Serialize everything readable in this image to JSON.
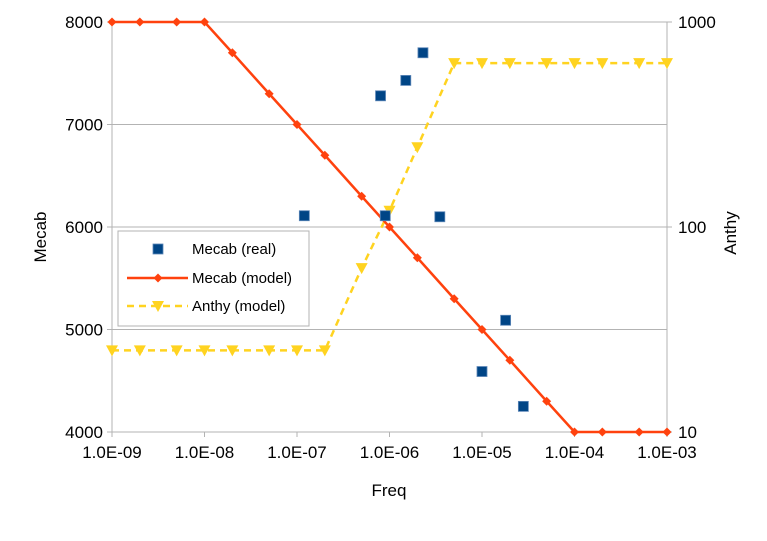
{
  "chart_data": {
    "type": "scatter",
    "xlabel": "Freq",
    "ylabel_left": "Mecab",
    "ylabel_right": "Anthy",
    "x_scale": "log",
    "xlim": [
      1e-09,
      0.001
    ],
    "x_ticks": [
      1e-09,
      1e-08,
      1e-07,
      1e-06,
      1e-05,
      0.0001,
      0.001
    ],
    "x_tick_labels": [
      "1.0E-09",
      "1.0E-08",
      "1.0E-07",
      "1.0E-06",
      "1.0E-05",
      "1.0E-04",
      "1.0E-03"
    ],
    "y_left_lim": [
      4000,
      8000
    ],
    "y_left_ticks": [
      4000,
      5000,
      6000,
      7000,
      8000
    ],
    "y_left_tick_labels": [
      "4000",
      "5000",
      "6000",
      "7000",
      "8000"
    ],
    "y_right_scale": "log",
    "y_right_lim": [
      10,
      1000
    ],
    "y_right_ticks": [
      10,
      100,
      1000
    ],
    "y_right_tick_labels": [
      "10",
      "100",
      "1000"
    ],
    "grid": "horizontal",
    "legend_position": "middle-left",
    "series": [
      {
        "name": "Mecab (real)",
        "axis": "left",
        "style": "markers",
        "marker": "square",
        "color": "#004586",
        "points": [
          [
            1.2e-07,
            6110
          ],
          [
            8e-07,
            7280
          ],
          [
            9e-07,
            6110
          ],
          [
            1.5e-06,
            7430
          ],
          [
            2.3e-06,
            7700
          ],
          [
            3.5e-06,
            6100
          ],
          [
            1e-05,
            4590
          ],
          [
            1.8e-05,
            5090
          ],
          [
            2.8e-05,
            4250
          ]
        ]
      },
      {
        "name": "Mecab (model)",
        "axis": "left",
        "style": "line",
        "marker": "diamond",
        "color": "#ff420e",
        "points": [
          [
            1e-09,
            8000
          ],
          [
            2e-09,
            8000
          ],
          [
            5e-09,
            8000
          ],
          [
            1e-08,
            8000
          ],
          [
            2e-08,
            7700
          ],
          [
            5e-08,
            7300
          ],
          [
            1e-07,
            7000
          ],
          [
            2e-07,
            6700
          ],
          [
            5e-07,
            6300
          ],
          [
            1e-06,
            6000
          ],
          [
            2e-06,
            5700
          ],
          [
            5e-06,
            5300
          ],
          [
            1e-05,
            5000
          ],
          [
            2e-05,
            4700
          ],
          [
            5e-05,
            4300
          ],
          [
            0.0001,
            4000
          ],
          [
            0.0002,
            4000
          ],
          [
            0.0005,
            4000
          ],
          [
            0.001,
            4000
          ]
        ]
      },
      {
        "name": "Anthy (model)",
        "axis": "right",
        "style": "dashed-line",
        "marker": "triangle-down",
        "color": "#ffd320",
        "points": [
          [
            1e-09,
            25
          ],
          [
            2e-09,
            25
          ],
          [
            5e-09,
            25
          ],
          [
            1e-08,
            25
          ],
          [
            2e-08,
            25
          ],
          [
            5e-08,
            25
          ],
          [
            1e-07,
            25
          ],
          [
            2e-07,
            25
          ],
          [
            5e-07,
            63
          ],
          [
            1e-06,
            120
          ],
          [
            2e-06,
            245
          ],
          [
            5e-06,
            630
          ],
          [
            1e-05,
            630
          ],
          [
            2e-05,
            630
          ],
          [
            5e-05,
            630
          ],
          [
            0.0001,
            630
          ],
          [
            0.0002,
            630
          ],
          [
            0.0005,
            630
          ],
          [
            0.001,
            630
          ]
        ]
      }
    ]
  }
}
